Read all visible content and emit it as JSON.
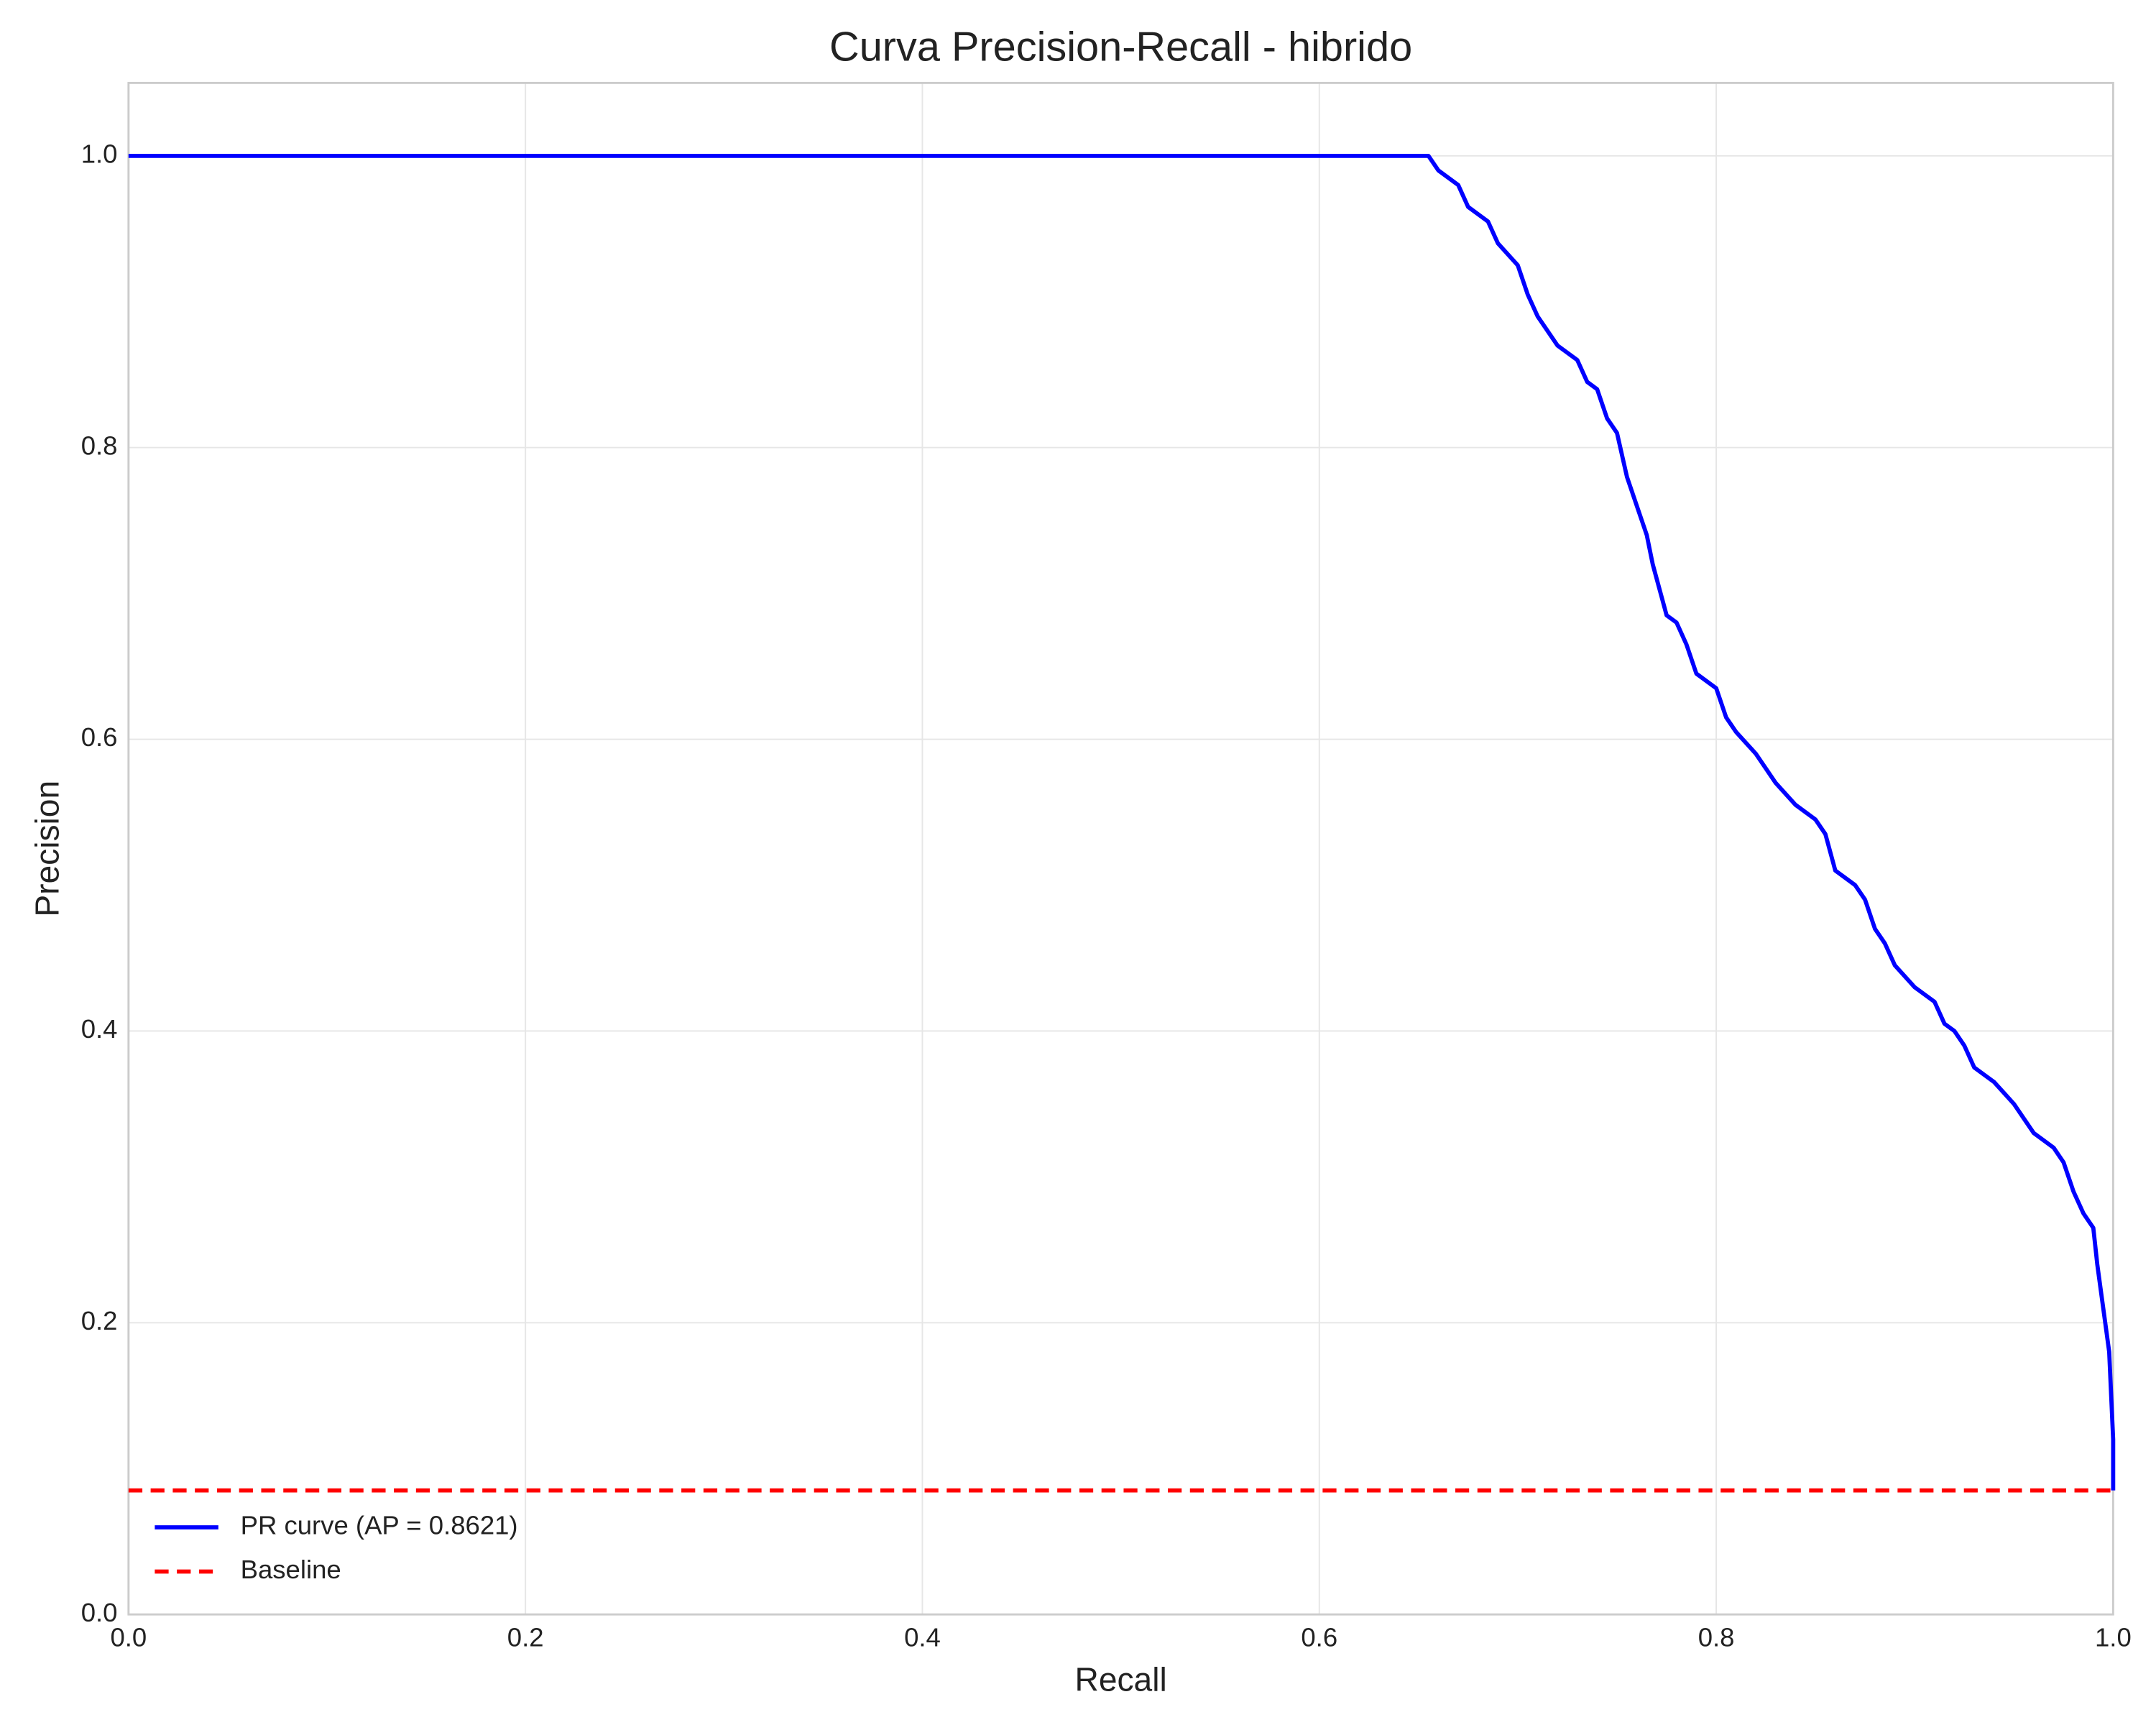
{
  "chart_data": {
    "type": "line",
    "title": "Curva Precision-Recall - hibrido",
    "xlabel": "Recall",
    "ylabel": "Precision",
    "xlim": [
      0,
      1
    ],
    "ylim": [
      0,
      1.05
    ],
    "xticks": [
      {
        "value": 0,
        "label": "0.0"
      },
      0.2,
      0.4,
      0.6,
      0.8,
      {
        "value": 1,
        "label": "1.0"
      }
    ],
    "yticks": [
      {
        "value": 0,
        "label": "0.0"
      },
      0.2,
      0.4,
      0.6,
      0.8,
      {
        "value": 1,
        "label": "1.0"
      }
    ],
    "grid": true,
    "legend": "lower left",
    "series": [
      {
        "name": "PR curve (AP = 0.8621)",
        "color": "#0000ff",
        "linestyle": "solid",
        "x": [
          0,
          0.655,
          0.66,
          0.67,
          0.675,
          0.685,
          0.69,
          0.7,
          0.705,
          0.71,
          0.72,
          0.73,
          0.735,
          0.74,
          0.745,
          0.75,
          0.755,
          0.76,
          0.765,
          0.768,
          0.772,
          0.775,
          0.78,
          0.785,
          0.79,
          0.8,
          0.805,
          0.81,
          0.82,
          0.83,
          0.84,
          0.85,
          0.855,
          0.86,
          0.87,
          0.875,
          0.88,
          0.885,
          0.89,
          0.9,
          0.91,
          0.915,
          0.92,
          0.925,
          0.93,
          0.94,
          0.95,
          0.955,
          0.96,
          0.97,
          0.975,
          0.98,
          0.985,
          0.99,
          0.992,
          0.994,
          0.996,
          0.998,
          1,
          1
        ],
        "values": [
          1,
          1,
          0.99,
          0.98,
          0.965,
          0.955,
          0.94,
          0.925,
          0.905,
          0.89,
          0.87,
          0.86,
          0.845,
          0.84,
          0.82,
          0.81,
          0.78,
          0.76,
          0.74,
          0.72,
          0.7,
          0.685,
          0.68,
          0.665,
          0.645,
          0.635,
          0.615,
          0.605,
          0.59,
          0.57,
          0.555,
          0.545,
          0.535,
          0.51,
          0.5,
          0.49,
          0.47,
          0.46,
          0.445,
          0.43,
          0.42,
          0.405,
          0.4,
          0.39,
          0.375,
          0.365,
          0.35,
          0.34,
          0.33,
          0.32,
          0.31,
          0.29,
          0.275,
          0.265,
          0.24,
          0.22,
          0.2,
          0.18,
          0.12,
          0.085
        ]
      },
      {
        "name": "Baseline",
        "color": "#ff0000",
        "linestyle": "dashed",
        "x": [
          0,
          1
        ],
        "values": [
          0.085,
          0.085
        ]
      }
    ]
  }
}
